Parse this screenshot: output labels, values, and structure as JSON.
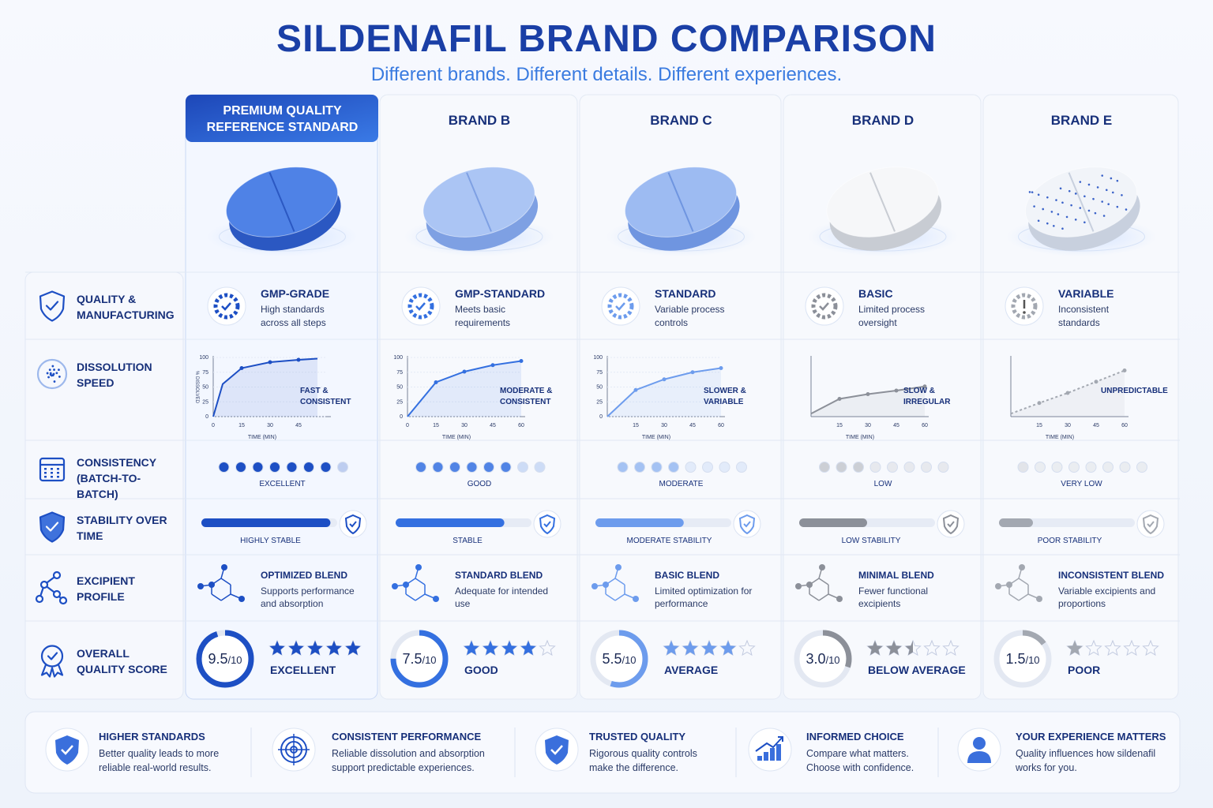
{
  "header": {
    "title": "SILDENAFIL BRAND COMPARISON",
    "subtitle": "Different brands. Different details. Different experiences."
  },
  "row_labels": [
    "QUALITY & MANUFACTURING",
    "DISSOLUTION SPEED",
    "CONSISTENCY (BATCH-TO-BATCH)",
    "STABILITY OVER TIME",
    "EXCIPIENT PROFILE",
    "OVERALL QUALITY SCORE"
  ],
  "score_lim": [
    0,
    10
  ],
  "stars_max": 5,
  "brands": [
    {
      "name": "PREMIUM QUALITY REFERENCE STANDARD",
      "color": "#1d4fc4",
      "quality": {
        "title": "GMP-GRADE",
        "text": "High standards across all steps"
      },
      "dissolution": {
        "x": [
          0,
          5,
          15,
          30,
          45,
          55
        ],
        "y": [
          0,
          55,
          82,
          92,
          96,
          98
        ],
        "xlim": [
          0,
          60
        ],
        "ylim": [
          0,
          100
        ],
        "xticks": [
          0,
          15,
          30,
          45
        ],
        "yticks": [
          0,
          25,
          50,
          75,
          100
        ],
        "x_label": "TIME (MIN)",
        "y_label": "% DISSOLVED",
        "label": "FAST & CONSISTENT",
        "line_style": "solid"
      },
      "consistency": "EXCELLENT",
      "stability": {
        "level": 95,
        "label": "HIGHLY STABLE"
      },
      "excipient": {
        "title": "OPTIMIZED BLEND",
        "text": "Supports performance and absorption"
      },
      "score": 9.5,
      "score_label": "9.5",
      "score_suffix": "/10",
      "stars": 5,
      "rating": "EXCELLENT"
    },
    {
      "name": "BRAND B",
      "color": "#3470e0",
      "quality": {
        "title": "GMP-STANDARD",
        "text": "Meets basic requirements"
      },
      "dissolution": {
        "x": [
          0,
          15,
          30,
          45,
          60
        ],
        "y": [
          0,
          58,
          76,
          87,
          94
        ],
        "xlim": [
          0,
          60
        ],
        "ylim": [
          0,
          100
        ],
        "xticks": [
          0,
          15,
          30,
          45,
          60
        ],
        "yticks": [
          0,
          25,
          50,
          75,
          100
        ],
        "x_label": "TIME (MIN)",
        "label": "MODERATE & CONSISTENT",
        "line_style": "solid"
      },
      "consistency": "GOOD",
      "stability": {
        "level": 80,
        "label": "STABLE"
      },
      "excipient": {
        "title": "STANDARD BLEND",
        "text": "Adequate for intended use"
      },
      "score": 7.5,
      "score_label": "7.5",
      "score_suffix": "/10",
      "stars": 4,
      "rating": "GOOD"
    },
    {
      "name": "BRAND C",
      "color": "#6d9ced",
      "quality": {
        "title": "STANDARD",
        "text": "Variable process controls"
      },
      "dissolution": {
        "x": [
          0,
          15,
          30,
          45,
          60
        ],
        "y": [
          0,
          45,
          63,
          75,
          82
        ],
        "xlim": [
          0,
          60
        ],
        "ylim": [
          0,
          100
        ],
        "xticks": [
          15,
          30,
          45,
          60
        ],
        "yticks": [
          0,
          25,
          50,
          75,
          100
        ],
        "x_label": "TIME (MIN)",
        "label": "SLOWER & VARIABLE",
        "line_style": "solid"
      },
      "consistency": "MODERATE",
      "stability": {
        "level": 65,
        "label": "MODERATE STABILITY"
      },
      "excipient": {
        "title": "BASIC BLEND",
        "text": "Limited optimization for performance"
      },
      "score": 5.5,
      "score_label": "5.5",
      "score_suffix": "/10",
      "stars": 4,
      "rating": "AVERAGE"
    },
    {
      "name": "BRAND D",
      "color": "#8c9099",
      "quality": {
        "title": "BASIC",
        "text": "Limited process oversight"
      },
      "dissolution": {
        "x": [
          0,
          15,
          30,
          45,
          60
        ],
        "y": [
          5,
          30,
          38,
          44,
          51
        ],
        "xlim": [
          0,
          60
        ],
        "ylim": [
          0,
          100
        ],
        "xticks": [
          15,
          30,
          45,
          60
        ],
        "x_label": "TIME (MIN)",
        "label": "SLOW & IRREGULAR",
        "line_style": "solid"
      },
      "consistency": "LOW",
      "stability": {
        "level": 50,
        "label": "LOW STABILITY"
      },
      "excipient": {
        "title": "MINIMAL BLEND",
        "text": "Fewer functional excipients"
      },
      "score": 3,
      "score_label": "3.0",
      "score_suffix": "/10",
      "stars": 2.5,
      "rating": "BELOW AVERAGE"
    },
    {
      "name": "BRAND E",
      "color": "#a3a8b1",
      "quality": {
        "title": "VARIABLE",
        "text": "Inconsistent standards"
      },
      "dissolution": {
        "x": [
          0,
          15,
          30,
          45,
          60
        ],
        "y": [
          5,
          23,
          40,
          59,
          78
        ],
        "xlim": [
          0,
          60
        ],
        "ylim": [
          0,
          100
        ],
        "xticks": [
          15,
          30,
          45,
          60
        ],
        "x_label": "TIME (MIN)",
        "label": "UNPREDICTABLE",
        "line_style": "dashed"
      },
      "consistency": "VERY LOW",
      "stability": {
        "level": 25,
        "label": "POOR STABILITY"
      },
      "excipient": {
        "title": "INCONSISTENT BLEND",
        "text": "Variable excipients and proportions"
      },
      "score": 1.5,
      "score_label": "1.5",
      "score_suffix": "/10",
      "stars": 1,
      "rating": "POOR"
    }
  ],
  "footer": [
    {
      "title": "HIGHER STANDARDS",
      "text": "Better quality leads to more reliable real-world results."
    },
    {
      "title": "CONSISTENT PERFORMANCE",
      "text": "Reliable dissolution and absorption support predictable experiences."
    },
    {
      "title": "TRUSTED QUALITY",
      "text": "Rigorous quality controls make the difference."
    },
    {
      "title": "INFORMED CHOICE",
      "text": "Compare what matters. Choose with confidence."
    },
    {
      "title": "YOUR EXPERIENCE MATTERS",
      "text": "Quality influences how sildenafil works for you."
    }
  ]
}
